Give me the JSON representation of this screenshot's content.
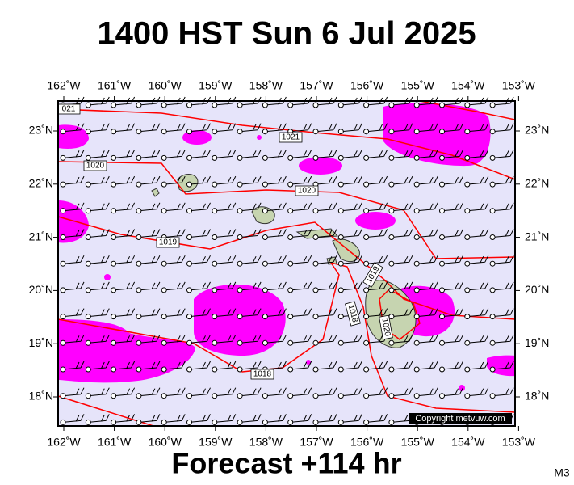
{
  "header": {
    "title": "1400 HST Sun 6 Jul 2025"
  },
  "lon_ticks": [
    "162˚W",
    "161˚W",
    "160˚W",
    "159˚W",
    "158˚W",
    "157˚W",
    "156˚W",
    "155˚W",
    "154˚W",
    "153˚W"
  ],
  "lat_ticks": [
    "23˚N",
    "22˚N",
    "21˚N",
    "20˚N",
    "19˚N",
    "18˚N"
  ],
  "isobar_labels": [
    "021",
    "1021",
    "1020",
    "1020",
    "1019",
    "1019",
    "1018",
    "1018",
    "1020"
  ],
  "copyright": "Copyright metvuw.com",
  "footer": {
    "forecast": "Forecast +114 hr",
    "model": "M3"
  }
}
